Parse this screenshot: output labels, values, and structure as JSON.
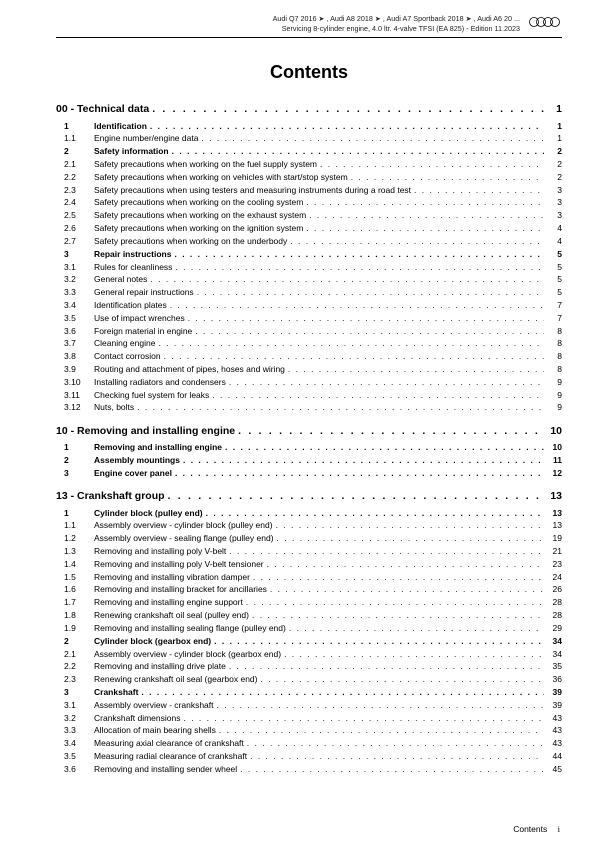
{
  "header": {
    "line1": "Audi Q7 2016 ➤ , Audi A8 2018 ➤ , Audi A7 Sportback 2018 ➤ , Audi A6 20 ...",
    "line2": "Servicing 8-cylinder engine, 4.0 ltr. 4-valve TFSI (EA 825) - Edition 11.2023",
    "logo_alt": "Audi"
  },
  "title": "Contents",
  "footer": {
    "label": "Contents",
    "page": "i"
  },
  "toc": [
    {
      "type": "chapter",
      "num": "00 - ",
      "label": "Technical data",
      "page": "1"
    },
    {
      "type": "section",
      "num": "1",
      "label": "Identification",
      "page": "1"
    },
    {
      "type": "item",
      "num": "1.1",
      "label": "Engine number/engine data",
      "page": "1"
    },
    {
      "type": "section",
      "num": "2",
      "label": "Safety information",
      "page": "2"
    },
    {
      "type": "item",
      "num": "2.1",
      "label": "Safety precautions when working on the fuel supply system",
      "page": "2"
    },
    {
      "type": "item",
      "num": "2.2",
      "label": "Safety precautions when working on vehicles with start/stop system",
      "page": "2"
    },
    {
      "type": "item",
      "num": "2.3",
      "label": "Safety precautions when using testers and measuring instruments during a road test",
      "page": "3"
    },
    {
      "type": "item",
      "num": "2.4",
      "label": "Safety precautions when working on the cooling system",
      "page": "3"
    },
    {
      "type": "item",
      "num": "2.5",
      "label": "Safety precautions when working on the exhaust system",
      "page": "3"
    },
    {
      "type": "item",
      "num": "2.6",
      "label": "Safety precautions when working on the ignition system",
      "page": "4"
    },
    {
      "type": "item",
      "num": "2.7",
      "label": "Safety precautions when working on the underbody",
      "page": "4"
    },
    {
      "type": "section",
      "num": "3",
      "label": "Repair instructions",
      "page": "5"
    },
    {
      "type": "item",
      "num": "3.1",
      "label": "Rules for cleanliness",
      "page": "5"
    },
    {
      "type": "item",
      "num": "3.2",
      "label": "General notes",
      "page": "5"
    },
    {
      "type": "item",
      "num": "3.3",
      "label": "General repair instructions",
      "page": "5"
    },
    {
      "type": "item",
      "num": "3.4",
      "label": "Identification plates",
      "page": "7"
    },
    {
      "type": "item",
      "num": "3.5",
      "label": "Use of impact wrenches",
      "page": "7"
    },
    {
      "type": "item",
      "num": "3.6",
      "label": "Foreign material in engine",
      "page": "8"
    },
    {
      "type": "item",
      "num": "3.7",
      "label": "Cleaning engine",
      "page": "8"
    },
    {
      "type": "item",
      "num": "3.8",
      "label": "Contact corrosion",
      "page": "8"
    },
    {
      "type": "item",
      "num": "3.9",
      "label": "Routing and attachment of pipes, hoses and wiring",
      "page": "8"
    },
    {
      "type": "item",
      "num": "3.10",
      "label": "Installing radiators and condensers",
      "page": "9"
    },
    {
      "type": "item",
      "num": "3.11",
      "label": "Checking fuel system for leaks",
      "page": "9"
    },
    {
      "type": "item",
      "num": "3.12",
      "label": "Nuts, bolts",
      "page": "9"
    },
    {
      "type": "chapter",
      "num": "10 - ",
      "label": "Removing and installing engine",
      "page": "10"
    },
    {
      "type": "section",
      "num": "1",
      "label": "Removing and installing engine",
      "page": "10"
    },
    {
      "type": "section",
      "num": "2",
      "label": "Assembly mountings",
      "page": "11"
    },
    {
      "type": "section",
      "num": "3",
      "label": "Engine cover panel",
      "page": "12"
    },
    {
      "type": "chapter",
      "num": "13 - ",
      "label": "Crankshaft group",
      "page": "13"
    },
    {
      "type": "section",
      "num": "1",
      "label": "Cylinder block (pulley end)",
      "page": "13"
    },
    {
      "type": "item",
      "num": "1.1",
      "label": "Assembly overview - cylinder block (pulley end)",
      "page": "13"
    },
    {
      "type": "item",
      "num": "1.2",
      "label": "Assembly overview - sealing flange (pulley end)",
      "page": "19"
    },
    {
      "type": "item",
      "num": "1.3",
      "label": "Removing and installing poly V-belt",
      "page": "21"
    },
    {
      "type": "item",
      "num": "1.4",
      "label": "Removing and installing poly V-belt tensioner",
      "page": "23"
    },
    {
      "type": "item",
      "num": "1.5",
      "label": "Removing and installing vibration damper",
      "page": "24"
    },
    {
      "type": "item",
      "num": "1.6",
      "label": "Removing and installing bracket for ancillaries",
      "page": "26"
    },
    {
      "type": "item",
      "num": "1.7",
      "label": "Removing and installing engine support",
      "page": "28"
    },
    {
      "type": "item",
      "num": "1.8",
      "label": "Renewing crankshaft oil seal (pulley end)",
      "page": "28"
    },
    {
      "type": "item",
      "num": "1.9",
      "label": "Removing and installing sealing flange (pulley end)",
      "page": "29"
    },
    {
      "type": "section",
      "num": "2",
      "label": "Cylinder block (gearbox end)",
      "page": "34"
    },
    {
      "type": "item",
      "num": "2.1",
      "label": "Assembly overview - cylinder block (gearbox end)",
      "page": "34"
    },
    {
      "type": "item",
      "num": "2.2",
      "label": "Removing and installing drive plate",
      "page": "35"
    },
    {
      "type": "item",
      "num": "2.3",
      "label": "Renewing crankshaft oil seal (gearbox end)",
      "page": "36"
    },
    {
      "type": "section",
      "num": "3",
      "label": "Crankshaft",
      "page": "39"
    },
    {
      "type": "item",
      "num": "3.1",
      "label": "Assembly overview - crankshaft",
      "page": "39"
    },
    {
      "type": "item",
      "num": "3.2",
      "label": "Crankshaft dimensions",
      "page": "43"
    },
    {
      "type": "item",
      "num": "3.3",
      "label": "Allocation of main bearing shells",
      "page": "43"
    },
    {
      "type": "item",
      "num": "3.4",
      "label": "Measuring axial clearance of crankshaft",
      "page": "43"
    },
    {
      "type": "item",
      "num": "3.5",
      "label": "Measuring radial clearance of crankshaft",
      "page": "44"
    },
    {
      "type": "item",
      "num": "3.6",
      "label": "Removing and installing sender wheel",
      "page": "45"
    }
  ]
}
